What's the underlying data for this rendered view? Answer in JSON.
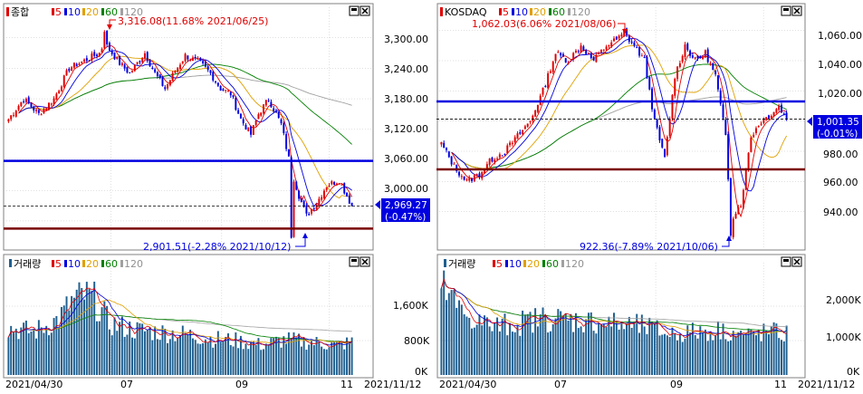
{
  "colors": {
    "up": "#e00000",
    "down": "#0000e0",
    "ma5": "#e00000",
    "ma10": "#0000e0",
    "ma20": "#e0a000",
    "ma60": "#008000",
    "ma120": "#a0a0a0",
    "hline_blue": "#0000e0",
    "hline_dark": "#7a0000",
    "volume_bar": "#1f5f8f",
    "grid": "#c0c0c0",
    "price_tag_bg": "#0000e0"
  },
  "panels": [
    {
      "title": "종합",
      "ma_legend": [
        "5",
        "10",
        "20",
        "60",
        "120"
      ],
      "volume_title": "거래량",
      "high_annotation": "3,316.08(11.68% 2021/06/25)",
      "low_annotation": "2,901.51(-2.28% 2021/10/12)",
      "last_price": "2,969.27",
      "last_change": "(-0.47%)",
      "yticks": [
        "3,300.00",
        "3,240.00",
        "3,180.00",
        "3,120.00",
        "3,060.00",
        "3,000.00"
      ],
      "vol_yticks": [
        "1,600K",
        "800K",
        "0K"
      ],
      "xticks": [
        "2021/04/30",
        "07",
        "09",
        "11"
      ],
      "end_date": "2021/11/12"
    },
    {
      "title": "KOSDAQ",
      "ma_legend": [
        "5",
        "10",
        "20",
        "60",
        "120"
      ],
      "volume_title": "거래량",
      "high_annotation": "1,062.03(6.06% 2021/08/06)",
      "low_annotation": "922.36(-7.89% 2021/10/06)",
      "last_price": "1,001.35",
      "last_change": "(-0.01%)",
      "yticks": [
        "1,060.00",
        "1,040.00",
        "1,020.00",
        "1,000.00",
        "980.00",
        "960.00",
        "940.00"
      ],
      "vol_yticks": [
        "2,000K",
        "1,000K",
        "0K"
      ],
      "xticks": [
        "2021/04/30",
        "07",
        "09",
        "11"
      ],
      "end_date": "2021/11/12"
    }
  ],
  "chart_data": [
    {
      "type": "candlestick",
      "series_title": "종합",
      "ylim": [
        2890,
        3335
      ],
      "n": 137,
      "high": {
        "value": 3316.08,
        "index": 38
      },
      "low": {
        "value": 2901.51,
        "index": 112
      },
      "close_anchors": [
        [
          0,
          3140
        ],
        [
          6,
          3180
        ],
        [
          12,
          3150
        ],
        [
          18,
          3180
        ],
        [
          24,
          3240
        ],
        [
          30,
          3255
        ],
        [
          36,
          3270
        ],
        [
          38,
          3290
        ],
        [
          44,
          3250
        ],
        [
          48,
          3230
        ],
        [
          54,
          3270
        ],
        [
          58,
          3230
        ],
        [
          62,
          3200
        ],
        [
          66,
          3235
        ],
        [
          70,
          3265
        ],
        [
          76,
          3250
        ],
        [
          80,
          3230
        ],
        [
          84,
          3200
        ],
        [
          88,
          3190
        ],
        [
          92,
          3140
        ],
        [
          96,
          3110
        ],
        [
          99,
          3150
        ],
        [
          103,
          3180
        ],
        [
          108,
          3130
        ],
        [
          112,
          3040
        ],
        [
          115,
          2990
        ],
        [
          118,
          2950
        ],
        [
          122,
          2975
        ],
        [
          126,
          3010
        ],
        [
          131,
          3020
        ],
        [
          136,
          2969.27
        ]
      ],
      "hlines": [
        3058,
        2925
      ],
      "dashed_line": 2969.27,
      "volume_ylim": [
        0,
        2400
      ],
      "volume_anchors": [
        [
          0,
          1100
        ],
        [
          10,
          1000
        ],
        [
          20,
          1300
        ],
        [
          25,
          1700
        ],
        [
          30,
          1850
        ],
        [
          34,
          1750
        ],
        [
          40,
          1200
        ],
        [
          50,
          1050
        ],
        [
          60,
          1000
        ],
        [
          70,
          950
        ],
        [
          80,
          850
        ],
        [
          90,
          800
        ],
        [
          100,
          700
        ],
        [
          110,
          820
        ],
        [
          120,
          760
        ],
        [
          130,
          700
        ],
        [
          136,
          760
        ]
      ]
    },
    {
      "type": "candlestick",
      "series_title": "KOSDAQ",
      "ylim": [
        917,
        1067
      ],
      "n": 137,
      "high": {
        "value": 1062.03,
        "index": 72
      },
      "low": {
        "value": 922.36,
        "index": 114
      },
      "close_anchors": [
        [
          0,
          985
        ],
        [
          5,
          970
        ],
        [
          10,
          960
        ],
        [
          15,
          965
        ],
        [
          20,
          975
        ],
        [
          25,
          980
        ],
        [
          30,
          990
        ],
        [
          35,
          1000
        ],
        [
          40,
          1020
        ],
        [
          45,
          1045
        ],
        [
          50,
          1040
        ],
        [
          55,
          1050
        ],
        [
          60,
          1040
        ],
        [
          65,
          1050
        ],
        [
          70,
          1055
        ],
        [
          72,
          1058
        ],
        [
          76,
          1050
        ],
        [
          80,
          1040
        ],
        [
          84,
          1000
        ],
        [
          88,
          975
        ],
        [
          92,
          1030
        ],
        [
          96,
          1050
        ],
        [
          100,
          1040
        ],
        [
          104,
          1045
        ],
        [
          108,
          1030
        ],
        [
          112,
          990
        ],
        [
          114,
          935
        ],
        [
          118,
          945
        ],
        [
          122,
          990
        ],
        [
          126,
          1000
        ],
        [
          130,
          1005
        ],
        [
          133,
          1010
        ],
        [
          136,
          1001.35
        ]
      ],
      "hlines": [
        1013,
        968
      ],
      "dashed_line": 1001.35,
      "volume_ylim": [
        0,
        3000
      ],
      "volume_anchors": [
        [
          0,
          2600
        ],
        [
          8,
          1800
        ],
        [
          20,
          1400
        ],
        [
          30,
          1500
        ],
        [
          40,
          1650
        ],
        [
          60,
          1550
        ],
        [
          80,
          1400
        ],
        [
          90,
          1200
        ],
        [
          100,
          1250
        ],
        [
          110,
          1300
        ],
        [
          120,
          1150
        ],
        [
          130,
          1250
        ],
        [
          136,
          1180
        ]
      ]
    }
  ]
}
